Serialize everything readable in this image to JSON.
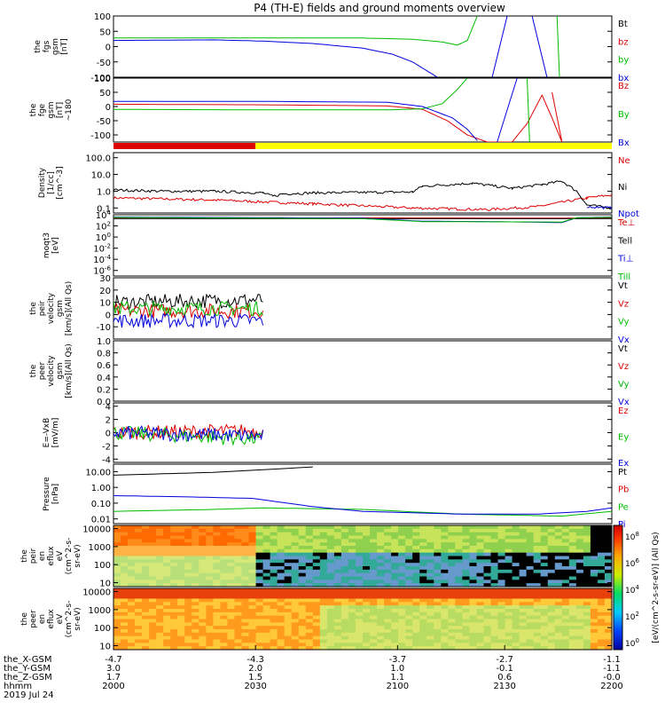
{
  "chart_data": {
    "title": "P4 (TH-E) fields and ground moments overview",
    "type": "line",
    "panels": [
      {
        "id": "fgs",
        "ylabel": [
          "the",
          "fgs",
          "gsm",
          "[nT]"
        ],
        "scale": "linear",
        "ylim": [
          -100,
          100
        ],
        "ticks": [
          "100",
          "50",
          "0",
          "-50",
          "-100"
        ],
        "series": [
          {
            "name": "Bt",
            "color": "#000000",
            "points": []
          },
          {
            "name": "bz",
            "color": "#dd0000",
            "points": []
          },
          {
            "name": "by",
            "color": "#00bb00",
            "points": [
              [
                0,
                28
              ],
              [
                0.5,
                28
              ],
              [
                0.6,
                24
              ],
              [
                0.66,
                15
              ],
              [
                0.69,
                5
              ],
              [
                0.71,
                20
              ],
              [
                0.72,
                60
              ],
              [
                0.73,
                100
              ]
            ]
          },
          {
            "name": "bx",
            "color": "#0000dd",
            "points": [
              [
                0,
                20
              ],
              [
                0.2,
                22
              ],
              [
                0.3,
                18
              ],
              [
                0.4,
                10
              ],
              [
                0.5,
                -5
              ],
              [
                0.56,
                -25
              ],
              [
                0.6,
                -50
              ],
              [
                0.63,
                -80
              ],
              [
                0.65,
                -100
              ]
            ]
          }
        ],
        "extra_lines": [
          {
            "color": "#0000dd",
            "points": [
              [
                0.76,
                -100
              ],
              [
                0.79,
                100
              ]
            ]
          },
          {
            "color": "#0000dd",
            "points": [
              [
                0.84,
                100
              ],
              [
                0.87,
                -100
              ]
            ]
          },
          {
            "color": "#00bb00",
            "points": [
              [
                0.89,
                100
              ],
              [
                0.895,
                -100
              ]
            ]
          }
        ]
      },
      {
        "id": "fge",
        "ylabel": [
          "the",
          "fge",
          "gsm",
          "[nT]",
          "~180"
        ],
        "scale": "linear",
        "ylim": [
          -125,
          100
        ],
        "ticks": [
          "100",
          "50",
          "0",
          "-50",
          "-100"
        ],
        "series": [
          {
            "name": "Bz",
            "color": "#dd0000",
            "points": [
              [
                0,
                8
              ],
              [
                0.3,
                6
              ],
              [
                0.55,
                2
              ],
              [
                0.62,
                -10
              ],
              [
                0.67,
                -50
              ],
              [
                0.71,
                -100
              ],
              [
                0.75,
                -125
              ],
              [
                0.8,
                -125
              ],
              [
                0.83,
                -60
              ],
              [
                0.86,
                40
              ],
              [
                0.88,
                -40
              ],
              [
                0.9,
                -125
              ]
            ]
          },
          {
            "name": "By",
            "color": "#00bb00",
            "points": [
              [
                0,
                -10
              ],
              [
                0.3,
                -12
              ],
              [
                0.55,
                -12
              ],
              [
                0.62,
                -8
              ],
              [
                0.66,
                10
              ],
              [
                0.69,
                60
              ],
              [
                0.71,
                100
              ]
            ]
          },
          {
            "name": "Bx",
            "color": "#0000dd",
            "points": [
              [
                0,
                18
              ],
              [
                0.3,
                18
              ],
              [
                0.55,
                15
              ],
              [
                0.62,
                0
              ],
              [
                0.65,
                -20
              ],
              [
                0.68,
                -40
              ],
              [
                0.71,
                -80
              ],
              [
                0.73,
                -120
              ]
            ]
          }
        ],
        "extra_lines": [
          {
            "color": "#0000dd",
            "points": [
              [
                0.77,
                -125
              ],
              [
                0.81,
                100
              ]
            ]
          },
          {
            "color": "#00bb00",
            "points": [
              [
                0.83,
                100
              ],
              [
                0.835,
                -125
              ]
            ]
          },
          {
            "color": "#dd0000",
            "points": [
              [
                0.88,
                50
              ],
              [
                0.9,
                -125
              ]
            ]
          }
        ]
      },
      {
        "id": "density",
        "ylabel": [
          "Density",
          "[1/cc]",
          "[cm^-3]"
        ],
        "scale": "log",
        "ylim": [
          0.05,
          200
        ],
        "ticks": [
          "100.0",
          "10.0",
          "1.0",
          "0.1"
        ],
        "series": [
          {
            "name": "Ne",
            "color": "#dd0000",
            "points": [
              [
                0,
                0.4
              ],
              [
                0.2,
                0.3
              ],
              [
                0.4,
                0.18
              ],
              [
                0.6,
                0.1
              ],
              [
                0.75,
                0.08
              ],
              [
                0.85,
                0.12
              ],
              [
                0.95,
                0.4
              ],
              [
                1,
                0.6
              ]
            ]
          },
          {
            "name": "Ni",
            "color": "#000000",
            "points": [
              [
                0,
                1.2
              ],
              [
                0.1,
                1
              ],
              [
                0.2,
                1
              ],
              [
                0.3,
                0.8
              ],
              [
                0.32,
                0.5
              ],
              [
                0.34,
                0.7
              ],
              [
                0.4,
                0.8
              ],
              [
                0.6,
                0.9
              ],
              [
                0.62,
                2
              ],
              [
                0.72,
                3
              ],
              [
                0.8,
                1.5
              ],
              [
                0.86,
                2.5
              ],
              [
                0.9,
                4
              ],
              [
                0.93,
                1
              ],
              [
                0.95,
                0.15
              ],
              [
                1,
                0.1
              ]
            ]
          },
          {
            "name": "Npot",
            "color": "#0000dd",
            "points": [
              [
                0.95,
                0.12
              ],
              [
                1,
                0.1
              ]
            ]
          }
        ]
      },
      {
        "id": "temperature",
        "ylabel": [
          "moqt3",
          "[eV]"
        ],
        "scale": "log",
        "ylim": [
          1e-07,
          10000
        ],
        "ticks": [
          "10^4",
          "10^2",
          "10^0",
          "10^-2",
          "10^-4",
          "10^-6"
        ],
        "series": [
          {
            "name": "Te⊥",
            "color": "#dd0000",
            "points": [
              [
                0,
                3000
              ],
              [
                1,
                2500
              ]
            ]
          },
          {
            "name": "Tell",
            "color": "#000000",
            "points": [
              [
                0,
                2000
              ],
              [
                1,
                2000
              ]
            ]
          },
          {
            "name": "Ti⊥",
            "color": "#0000dd",
            "points": [
              [
                0,
                4000
              ],
              [
                0.5,
                2500
              ],
              [
                0.62,
                700
              ],
              [
                0.75,
                600
              ],
              [
                0.9,
                400
              ],
              [
                0.93,
                3000
              ],
              [
                1,
                4000
              ]
            ]
          },
          {
            "name": "Till",
            "color": "#00bb00",
            "points": [
              [
                0,
                3500
              ],
              [
                0.5,
                2000
              ],
              [
                0.62,
                600
              ],
              [
                0.9,
                500
              ],
              [
                0.93,
                3000
              ],
              [
                1,
                3500
              ]
            ]
          }
        ]
      },
      {
        "id": "peir_velocity",
        "ylabel": [
          "the",
          "peir",
          "velocity",
          "gsm",
          "[km/s](All Qs)"
        ],
        "scale": "linear",
        "ylim": [
          -20,
          30
        ],
        "ticks": [
          "30",
          "20",
          "10",
          "0",
          "-10"
        ],
        "series": [
          {
            "name": "Vt",
            "color": "#000000",
            "points": [
              [
                0,
                10
              ],
              [
                0.3,
                12
              ]
            ]
          },
          {
            "name": "Vz",
            "color": "#dd0000",
            "points": [
              [
                0,
                3
              ],
              [
                0.3,
                3
              ]
            ]
          },
          {
            "name": "Vy",
            "color": "#00bb00",
            "points": [
              [
                0,
                5
              ],
              [
                0.3,
                5
              ]
            ]
          },
          {
            "name": "Vx",
            "color": "#0000dd",
            "points": [
              [
                0,
                -5
              ],
              [
                0.3,
                -5
              ]
            ]
          }
        ]
      },
      {
        "id": "peer_velocity",
        "ylabel": [
          "the",
          "peer",
          "velocity",
          "gsm",
          "[km/s](All Qs)"
        ],
        "scale": "linear",
        "ylim": [
          0,
          1
        ],
        "ticks": [
          "1.0",
          "0.8",
          "0.6",
          "0.4",
          "0.2",
          "0.0"
        ],
        "series": [
          {
            "name": "Vt",
            "color": "#000000",
            "points": []
          },
          {
            "name": "Vz",
            "color": "#dd0000",
            "points": []
          },
          {
            "name": "Vy",
            "color": "#00bb00",
            "points": []
          },
          {
            "name": "Vx",
            "color": "#0000dd",
            "points": []
          }
        ]
      },
      {
        "id": "efield",
        "ylabel": [
          "E=-VxB",
          "[mV/m]"
        ],
        "scale": "linear",
        "ylim": [
          -4.5,
          4.5
        ],
        "ticks": [
          "4",
          "2",
          "0",
          "-2",
          "-4"
        ],
        "series": [
          {
            "name": "Ez",
            "color": "#dd0000",
            "points": [
              [
                0,
                0
              ],
              [
                0.3,
                0.3
              ]
            ]
          },
          {
            "name": "Ey",
            "color": "#00bb00",
            "points": [
              [
                0,
                0
              ],
              [
                0.3,
                -1
              ]
            ]
          },
          {
            "name": "Ex",
            "color": "#0000dd",
            "points": [
              [
                0,
                0
              ],
              [
                0.3,
                -0.5
              ]
            ]
          }
        ]
      },
      {
        "id": "pressure",
        "ylabel": [
          "Pressure",
          "[nPa]"
        ],
        "scale": "log",
        "ylim": [
          0.005,
          30
        ],
        "ticks": [
          "10.00",
          "1.00",
          "0.10",
          "0.01"
        ],
        "series": [
          {
            "name": "Pt",
            "color": "#000000",
            "points": [
              [
                0,
                6
              ],
              [
                0.2,
                9
              ],
              [
                0.4,
                20
              ]
            ]
          },
          {
            "name": "Pb",
            "color": "#dd0000",
            "points": []
          },
          {
            "name": "Pe",
            "color": "#00bb00",
            "points": [
              [
                0,
                0.03
              ],
              [
                0.2,
                0.04
              ],
              [
                0.3,
                0.05
              ],
              [
                0.5,
                0.04
              ],
              [
                0.7,
                0.02
              ],
              [
                0.9,
                0.015
              ],
              [
                1,
                0.03
              ]
            ]
          },
          {
            "name": "Pi",
            "color": "#0000dd",
            "points": [
              [
                0,
                0.3
              ],
              [
                0.15,
                0.25
              ],
              [
                0.28,
                0.2
              ],
              [
                0.4,
                0.06
              ],
              [
                0.5,
                0.03
              ],
              [
                0.7,
                0.02
              ],
              [
                0.85,
                0.02
              ],
              [
                0.95,
                0.03
              ],
              [
                1,
                0.05
              ]
            ]
          }
        ]
      },
      {
        "id": "peir_eflux",
        "ylabel": [
          "the",
          "peir",
          "en",
          "eflux",
          "eV",
          "(cm^2-s-",
          "sr-eV)"
        ],
        "type": "spectrogram",
        "scale": "log",
        "ylim": [
          6,
          15000
        ],
        "ticks": [
          "10000",
          "1000",
          "100",
          "10"
        ]
      },
      {
        "id": "peer_eflux",
        "ylabel": [
          "the",
          "peer",
          "en",
          "eflux",
          "eV",
          "(cm^2-s-",
          "sr-eV)"
        ],
        "type": "spectrogram",
        "scale": "log",
        "ylim": [
          6,
          15000
        ],
        "ticks": [
          "10000",
          "1000",
          "100",
          "10"
        ]
      }
    ],
    "colorbar": {
      "label": "[eV/(cm^2-s-sr-eV)] (All Qs)",
      "ticks": [
        "10^8",
        "10^6",
        "10^4",
        "10^2",
        "10^0"
      ]
    },
    "x_axis": {
      "row_labels": [
        "the_X-GSM",
        "the_Y-GSM",
        "the_Z-GSM",
        "hhmm",
        "2019 Jul 24"
      ],
      "columns": [
        {
          "pos": 0,
          "values": [
            "-4.7",
            "3.0",
            "1.7",
            "2000"
          ]
        },
        {
          "pos": 0.285,
          "values": [
            "-4.3",
            "2.0",
            "1.5",
            "2030"
          ]
        },
        {
          "pos": 0.57,
          "values": [
            "-3.7",
            "1.0",
            "1.1",
            "2100"
          ]
        },
        {
          "pos": 0.785,
          "values": [
            "-2.7",
            "-0.1",
            "0.6",
            "2130"
          ]
        },
        {
          "pos": 1.0,
          "values": [
            "-1.1",
            "-1.1",
            "-0.0",
            "2200"
          ]
        }
      ]
    },
    "mode_bar": {
      "segments": [
        {
          "from": 0,
          "to": 0.285,
          "color": "#dd0000"
        },
        {
          "from": 0.285,
          "to": 1,
          "color": "#ffff00"
        }
      ]
    }
  }
}
